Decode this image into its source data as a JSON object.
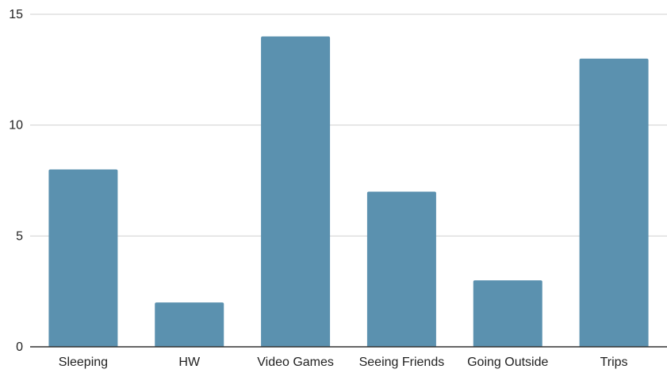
{
  "chart_data": {
    "type": "bar",
    "title": "",
    "xlabel": "",
    "ylabel": "",
    "categories": [
      "Sleeping",
      "HW",
      "Video Games",
      "Seeing Friends",
      "Going Outside",
      "Trips"
    ],
    "values": [
      8,
      2,
      14,
      7,
      3,
      13
    ],
    "ylim": [
      0,
      15
    ],
    "yticks": [
      0,
      5,
      10,
      15
    ],
    "grid": true,
    "legend": "none",
    "colors": {
      "bar": "#5b91af",
      "gridline": "#d0d0d0",
      "axis": "#333333",
      "text": "#222222"
    }
  }
}
